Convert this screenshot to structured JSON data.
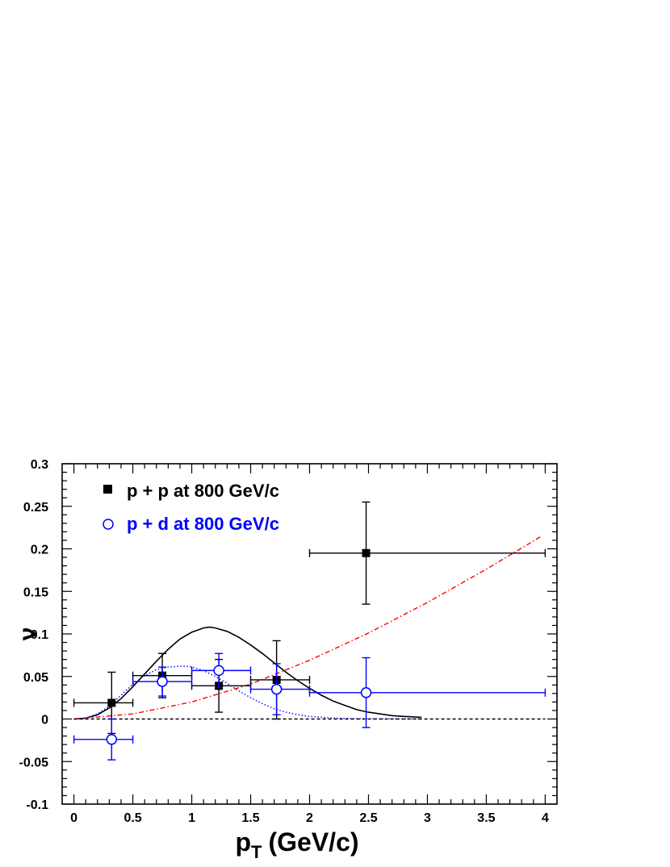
{
  "chart_data": {
    "type": "scatter",
    "xlabel": "p",
    "xlabel_sub": "T",
    "xlabel_unit": "(GeV/c)",
    "ylabel": "ν",
    "xlim": [
      -0.1,
      4.1
    ],
    "ylim": [
      -0.1,
      0.3
    ],
    "xticks": [
      0,
      0.5,
      1,
      1.5,
      2,
      2.5,
      3,
      3.5,
      4
    ],
    "xtick_labels": [
      "0",
      "0.5",
      "1",
      "1.5",
      "2",
      "2.5",
      "3",
      "3.5",
      "4"
    ],
    "yticks": [
      -0.1,
      -0.05,
      0,
      0.05,
      0.1,
      0.15,
      0.2,
      0.25,
      0.3
    ],
    "ytick_labels": [
      "-0.1",
      "-0.05",
      "0",
      "0.05",
      "0.1",
      "0.15",
      "0.2",
      "0.25",
      "0.3"
    ],
    "legend_position": "top-left",
    "series": [
      {
        "name": "p + p at 800 GeV/c",
        "marker": "filled-square",
        "color": "#000000",
        "points": [
          {
            "x": 0.32,
            "y": 0.019,
            "xerr": [
              0.0,
              0.5
            ],
            "yerr": 0.036
          },
          {
            "x": 0.75,
            "y": 0.051,
            "xerr": [
              0.5,
              1.0
            ],
            "yerr": 0.026
          },
          {
            "x": 1.23,
            "y": 0.039,
            "xerr": [
              1.0,
              1.5
            ],
            "yerr": 0.031
          },
          {
            "x": 1.72,
            "y": 0.046,
            "xerr": [
              1.5,
              2.0
            ],
            "yerr": 0.046
          },
          {
            "x": 2.48,
            "y": 0.195,
            "xerr": [
              2.0,
              4.0
            ],
            "yerr": 0.06
          }
        ]
      },
      {
        "name": "p + d at 800 GeV/c",
        "marker": "open-circle",
        "color": "#0000ff",
        "points": [
          {
            "x": 0.32,
            "y": -0.024,
            "xerr": [
              0.0,
              0.5
            ],
            "yerr": 0.024
          },
          {
            "x": 0.75,
            "y": 0.044,
            "xerr": [
              0.5,
              1.0
            ],
            "yerr": 0.017
          },
          {
            "x": 1.23,
            "y": 0.057,
            "xerr": [
              1.0,
              1.5
            ],
            "yerr": 0.02
          },
          {
            "x": 1.72,
            "y": 0.035,
            "xerr": [
              1.5,
              2.0
            ],
            "yerr": 0.03
          },
          {
            "x": 2.48,
            "y": 0.031,
            "xerr": [
              2.0,
              4.0
            ],
            "yerr": 0.041
          }
        ]
      }
    ],
    "curves": [
      {
        "style": "solid",
        "color": "#000000",
        "x": [
          0,
          0.1,
          0.2,
          0.3,
          0.4,
          0.5,
          0.6,
          0.7,
          0.8,
          0.9,
          1.0,
          1.1,
          1.15,
          1.2,
          1.3,
          1.4,
          1.5,
          1.6,
          1.7,
          1.8,
          1.9,
          2.0,
          2.1,
          2.2,
          2.3,
          2.4,
          2.5,
          2.6,
          2.7,
          2.8,
          2.95
        ],
        "y": [
          0,
          0.001,
          0.005,
          0.013,
          0.024,
          0.038,
          0.053,
          0.068,
          0.082,
          0.094,
          0.102,
          0.107,
          0.108,
          0.107,
          0.103,
          0.096,
          0.087,
          0.077,
          0.066,
          0.055,
          0.045,
          0.036,
          0.028,
          0.021,
          0.016,
          0.011,
          0.008,
          0.006,
          0.004,
          0.003,
          0.002
        ]
      },
      {
        "style": "dotted",
        "color": "#0000ff",
        "x": [
          0,
          0.1,
          0.2,
          0.3,
          0.4,
          0.5,
          0.6,
          0.7,
          0.8,
          0.9,
          0.95,
          1.0,
          1.1,
          1.2,
          1.3,
          1.4,
          1.5,
          1.6,
          1.7,
          1.8,
          1.9,
          2.0,
          2.2,
          2.4,
          2.6,
          2.8,
          2.95
        ],
        "y": [
          0,
          0.001,
          0.006,
          0.015,
          0.028,
          0.041,
          0.051,
          0.058,
          0.061,
          0.062,
          0.062,
          0.061,
          0.057,
          0.05,
          0.042,
          0.033,
          0.025,
          0.018,
          0.012,
          0.008,
          0.005,
          0.003,
          0.001,
          0.0005,
          0.0002,
          0.0001,
          0
        ]
      },
      {
        "style": "dashdot",
        "color": "#ff0000",
        "x": [
          0,
          0.5,
          1.0,
          1.5,
          2.0,
          2.5,
          3.0,
          3.5,
          3.97
        ],
        "y": [
          0,
          0.006,
          0.02,
          0.041,
          0.069,
          0.101,
          0.137,
          0.176,
          0.215
        ]
      },
      {
        "style": "dashed",
        "color": "#000000",
        "x": [
          0,
          4.0
        ],
        "y": [
          0,
          0
        ]
      }
    ]
  }
}
